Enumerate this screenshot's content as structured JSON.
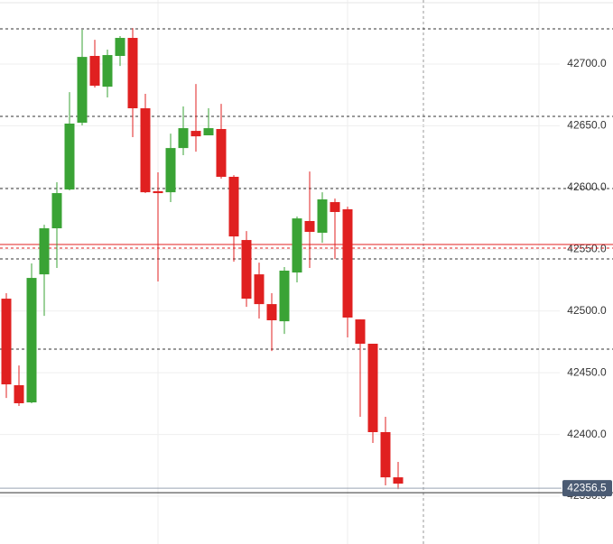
{
  "chart_data": {
    "type": "candlestick",
    "up_color": "#3aa335",
    "down_color": "#e02020",
    "open": [
      42510.0,
      42439.9,
      42426.0,
      42529.7,
      42567.0,
      42598.4,
      42652.5,
      42706.6,
      42681.7,
      42706.6,
      42721.2,
      42664.2,
      42597.0,
      42596.2,
      42632.0,
      42645.9,
      42642.3,
      42647.4,
      42608.7,
      42557.5,
      42529.7,
      42505.6,
      42491.7,
      42531.2,
      42572.9,
      42563.4,
      42588.2,
      42582.4,
      42493.2,
      42473.5,
      42401.9,
      42365.3
    ],
    "high": [
      42514.4,
      42455.9,
      42538.5,
      42569.9,
      42604.3,
      42677.3,
      42727.8,
      42719.7,
      42711.7,
      42722.7,
      42729.2,
      42675.9,
      42612.3,
      42643.7,
      42665.7,
      42683.9,
      42664.2,
      42667.8,
      42610.1,
      42564.8,
      42539.2,
      42514.4,
      42535.6,
      42576.5,
      42613.0,
      42596.2,
      42591.1,
      42584.5,
      42493.2,
      42473.5,
      42414.3,
      42377.8
    ],
    "low": [
      42429.6,
      42423.1,
      42425.3,
      42496.1,
      42534.9,
      42597.7,
      42650.3,
      42681.0,
      42673.0,
      42698.5,
      42640.8,
      42595.5,
      42523.9,
      42588.2,
      42626.2,
      42629.1,
      42642.3,
      42607.2,
      42540.0,
      42503.4,
      42493.9,
      42467.6,
      42481.5,
      42523.2,
      42534.9,
      42555.3,
      42542.2,
      42478.6,
      42414.3,
      42393.1,
      42358.8,
      42355.8
    ],
    "close": [
      42440.6,
      42425.3,
      42526.8,
      42567.0,
      42595.5,
      42651.8,
      42705.8,
      42682.5,
      42707.3,
      42721.2,
      42664.2,
      42596.2,
      42595.5,
      42632.0,
      42648.1,
      42641.5,
      42648.1,
      42608.7,
      42560.4,
      42510.0,
      42505.6,
      42492.5,
      42532.7,
      42575.0,
      42564.1,
      42590.4,
      42580.2,
      42494.7,
      42473.5,
      42401.9,
      42365.3,
      42360.2
    ],
    "ylim": [
      42311.3,
      42751.9
    ],
    "yticks": [
      {
        "value": 42350,
        "label": "42350.0"
      },
      {
        "value": 42400,
        "label": "42400.0"
      },
      {
        "value": 42450,
        "label": "42450.0"
      },
      {
        "value": 42500,
        "label": "42500.0"
      },
      {
        "value": 42550,
        "label": "42550.0"
      },
      {
        "value": 42600,
        "label": "42600.0"
      },
      {
        "value": 42650,
        "label": "42650.0"
      },
      {
        "value": 42700,
        "label": "42700.0"
      }
    ],
    "levels": [
      {
        "value": 42728.5,
        "color": "#333333",
        "dash": true
      },
      {
        "value": 42657.6,
        "color": "#333333",
        "dash": true
      },
      {
        "value": 42599.2,
        "color": "#333333",
        "dash": true
      },
      {
        "value": 42542.2,
        "color": "#333333",
        "dash": true
      },
      {
        "value": 42469.1,
        "color": "#333333",
        "dash": true
      },
      {
        "value": 42553.9,
        "color": "#e02020",
        "dash": false
      },
      {
        "value": 42551.0,
        "color": "#e02020",
        "dash": true
      },
      {
        "value": 42352.9,
        "color": "#333333",
        "dash": false
      }
    ],
    "last_price": 42356.5,
    "grid": true
  }
}
